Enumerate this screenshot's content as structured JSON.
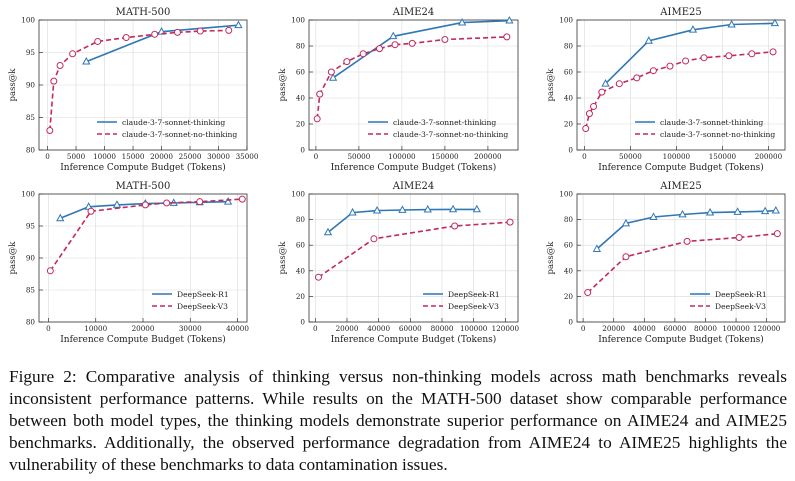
{
  "caption": "Figure 2: Comparative analysis of thinking versus non-thinking models across math benchmarks reveals inconsistent performance patterns. While results on the MATH-500 dataset show comparable performance between both model types, the thinking models demonstrate superior performance on AIME24 and AIME25 benchmarks. Additionally, the observed performance degradation from AIME24 to AIME25 highlights the vulnerability of these benchmarks to data contamination issues.",
  "colors": {
    "thinking": "#2f77b6",
    "nonthinking": "#c22a5a",
    "grid": "#d9d9d9"
  },
  "chart_data": [
    {
      "type": "line",
      "title": "MATH-500",
      "xlabel": "Inference Compute Budget (Tokens)",
      "ylabel": "pass@k",
      "xlim": [
        -1500,
        35000
      ],
      "ylim": [
        80,
        100
      ],
      "xticks": [
        0,
        5000,
        10000,
        15000,
        20000,
        25000,
        30000,
        35000
      ],
      "xtick_labels": [
        "0",
        "5000",
        "10000",
        "15000",
        "20000",
        "25000",
        "30000",
        "35000"
      ],
      "yticks": [
        80,
        85,
        90,
        95,
        100
      ],
      "legend": "bottom-right",
      "series": [
        {
          "name": "claude-3-7-sonnet-thinking",
          "style": "thinking",
          "x": [
            6800,
            20000,
            33500
          ],
          "y": [
            93.6,
            98.2,
            99.2
          ]
        },
        {
          "name": "claude-3-7-sonnet-no-thinking",
          "style": "nonthinking",
          "x": [
            400,
            1100,
            2200,
            4400,
            8800,
            13800,
            18800,
            22800,
            26800,
            31800
          ],
          "y": [
            83.0,
            90.6,
            93.0,
            94.8,
            96.7,
            97.3,
            97.8,
            98.1,
            98.3,
            98.4
          ]
        }
      ]
    },
    {
      "type": "line",
      "title": "AIME24",
      "xlabel": "Inference Compute Budget (Tokens)",
      "ylabel": "pass@k",
      "xlim": [
        -8000,
        235000
      ],
      "ylim": [
        0,
        100
      ],
      "xticks": [
        0,
        50000,
        100000,
        150000,
        200000
      ],
      "xtick_labels": [
        "0",
        "50000",
        "100000",
        "150000",
        "200000"
      ],
      "yticks": [
        0,
        20,
        40,
        60,
        80,
        100
      ],
      "legend": "bottom-right",
      "series": [
        {
          "name": "claude-3-7-sonnet-thinking",
          "style": "thinking",
          "x": [
            20000,
            90000,
            170000,
            225000
          ],
          "y": [
            55.5,
            87.5,
            98.0,
            99.5
          ]
        },
        {
          "name": "claude-3-7-sonnet-no-thinking",
          "style": "nonthinking",
          "x": [
            1500,
            4500,
            18000,
            36000,
            55000,
            74000,
            92000,
            112000,
            150000,
            222000
          ],
          "y": [
            24.0,
            43.0,
            60.0,
            68.0,
            74.0,
            78.0,
            81.0,
            82.0,
            85.0,
            87.0
          ]
        }
      ]
    },
    {
      "type": "line",
      "title": "AIME25",
      "xlabel": "Inference Compute Budget (Tokens)",
      "ylabel": "pass@k",
      "xlim": [
        -8000,
        218000
      ],
      "ylim": [
        0,
        100
      ],
      "xticks": [
        0,
        50000,
        100000,
        150000,
        200000
      ],
      "xtick_labels": [
        "0",
        "50000",
        "100000",
        "150000",
        "200000"
      ],
      "yticks": [
        0,
        20,
        40,
        60,
        80,
        100
      ],
      "legend": "bottom-right",
      "series": [
        {
          "name": "claude-3-7-sonnet-thinking",
          "style": "thinking",
          "x": [
            23000,
            70000,
            118000,
            160000,
            207000
          ],
          "y": [
            51.0,
            84.0,
            92.5,
            96.5,
            97.5
          ]
        },
        {
          "name": "claude-3-7-sonnet-no-thinking",
          "style": "nonthinking",
          "x": [
            1500,
            5500,
            10000,
            19000,
            38000,
            57000,
            75000,
            93000,
            110000,
            130000,
            157000,
            182000,
            205000
          ],
          "y": [
            16.5,
            28.0,
            33.5,
            44.5,
            51.0,
            55.5,
            61.0,
            64.5,
            68.5,
            71.0,
            72.5,
            74.0,
            75.5
          ]
        }
      ]
    },
    {
      "type": "line",
      "title": "MATH-500",
      "xlabel": "Inference Compute Budget (Tokens)",
      "ylabel": "pass@k",
      "xlim": [
        -2000,
        42000
      ],
      "ylim": [
        80,
        100
      ],
      "xticks": [
        0,
        10000,
        20000,
        30000,
        40000
      ],
      "xtick_labels": [
        "0",
        "10000",
        "20000",
        "30000",
        "40000"
      ],
      "yticks": [
        80,
        85,
        90,
        95,
        100
      ],
      "legend": "bottom-right",
      "series": [
        {
          "name": "DeepSeek-R1",
          "style": "thinking",
          "x": [
            2500,
            8500,
            14500,
            20500,
            26500,
            32000,
            38000
          ],
          "y": [
            96.2,
            98.0,
            98.3,
            98.5,
            98.6,
            98.7,
            98.8
          ]
        },
        {
          "name": "DeepSeek-V3",
          "style": "nonthinking",
          "x": [
            400,
            9000,
            20500,
            25000,
            32000,
            41000
          ],
          "y": [
            88.0,
            97.3,
            98.3,
            98.6,
            98.8,
            99.2
          ]
        }
      ]
    },
    {
      "type": "line",
      "title": "AIME24",
      "xlabel": "Inference Compute Budget (Tokens)",
      "ylabel": "pass@k",
      "xlim": [
        -4000,
        128000
      ],
      "ylim": [
        0,
        100
      ],
      "xticks": [
        0,
        20000,
        40000,
        60000,
        80000,
        100000,
        120000
      ],
      "xtick_labels": [
        "0",
        "20000",
        "40000",
        "60000",
        "80000",
        "100000",
        "120000"
      ],
      "yticks": [
        0,
        20,
        40,
        60,
        80,
        100
      ],
      "legend": "bottom-right",
      "series": [
        {
          "name": "DeepSeek-R1",
          "style": "thinking",
          "x": [
            8000,
            23500,
            39000,
            55000,
            71000,
            87000,
            102000
          ],
          "y": [
            70.0,
            85.5,
            87.0,
            87.5,
            87.8,
            88.0,
            88.0
          ]
        },
        {
          "name": "DeepSeek-V3",
          "style": "nonthinking",
          "x": [
            2000,
            37000,
            88000,
            123000
          ],
          "y": [
            35.0,
            65.0,
            75.0,
            78.0
          ]
        }
      ]
    },
    {
      "type": "line",
      "title": "AIME25",
      "xlabel": "Inference Compute Budget (Tokens)",
      "ylabel": "pass@k",
      "xlim": [
        -4000,
        132000
      ],
      "ylim": [
        0,
        100
      ],
      "xticks": [
        0,
        20000,
        40000,
        60000,
        80000,
        100000,
        120000
      ],
      "xtick_labels": [
        "0",
        "20000",
        "40000",
        "60000",
        "80000",
        "100000",
        "120000"
      ],
      "yticks": [
        0,
        20,
        40,
        60,
        80,
        100
      ],
      "legend": "bottom-right",
      "series": [
        {
          "name": "DeepSeek-R1",
          "style": "thinking",
          "x": [
            9000,
            28000,
            46000,
            65000,
            83000,
            101000,
            119000,
            126000
          ],
          "y": [
            57.0,
            77.0,
            82.0,
            84.0,
            85.5,
            86.0,
            86.5,
            87.0
          ]
        },
        {
          "name": "DeepSeek-V3",
          "style": "nonthinking",
          "x": [
            3000,
            28000,
            68000,
            102000,
            127000
          ],
          "y": [
            23.0,
            51.0,
            63.0,
            66.0,
            69.0
          ]
        }
      ]
    }
  ]
}
